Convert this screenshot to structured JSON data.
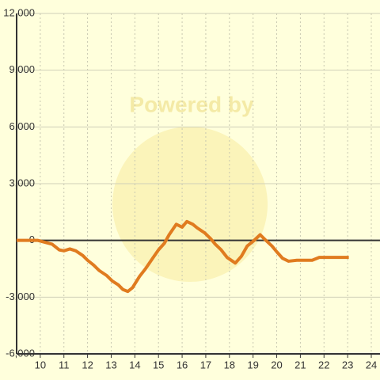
{
  "chart_data": {
    "type": "line",
    "watermark": "Powered by",
    "x": [
      9,
      9.9,
      10.2,
      10.5,
      10.8,
      11.0,
      11.25,
      11.5,
      11.8,
      12.0,
      12.25,
      12.5,
      12.8,
      13.05,
      13.3,
      13.5,
      13.7,
      13.9,
      14.2,
      14.45,
      14.75,
      15.0,
      15.25,
      15.45,
      15.75,
      16.0,
      16.2,
      16.45,
      16.65,
      16.95,
      17.2,
      17.4,
      17.65,
      17.9,
      18.25,
      18.5,
      18.75,
      19.0,
      19.3,
      19.5,
      19.8,
      20.0,
      20.25,
      20.5,
      20.85,
      21.2,
      21.5,
      21.8,
      22.2,
      23.05
    ],
    "series": [
      {
        "color": "#e07b1f",
        "values": [
          0,
          0,
          -100,
          -200,
          -500,
          -550,
          -450,
          -550,
          -800,
          -1050,
          -1300,
          -1600,
          -1850,
          -2150,
          -2350,
          -2600,
          -2700,
          -2500,
          -1900,
          -1500,
          -950,
          -500,
          -150,
          300,
          850,
          700,
          1000,
          850,
          650,
          400,
          100,
          -200,
          -500,
          -900,
          -1200,
          -850,
          -300,
          -50,
          300,
          50,
          -300,
          -600,
          -950,
          -1100,
          -1050,
          -1050,
          -1050,
          -900,
          -900,
          -900
        ]
      }
    ],
    "xlim": [
      9,
      24
    ],
    "xticks": [
      10,
      11,
      12,
      13,
      14,
      15,
      16,
      17,
      18,
      19,
      20,
      21,
      22,
      23,
      24
    ],
    "ylim": [
      -6000,
      12000
    ],
    "yticks": [
      {
        "value": -6000,
        "label": "-6,000"
      },
      {
        "value": -3000,
        "label": "-3,000"
      },
      0,
      {
        "value": 3000,
        "label": "3,000"
      },
      {
        "value": 6000,
        "label": "6,000"
      },
      {
        "value": 9000,
        "label": "9,000"
      },
      {
        "value": 12000,
        "label": "12,000"
      }
    ],
    "grid": true
  }
}
